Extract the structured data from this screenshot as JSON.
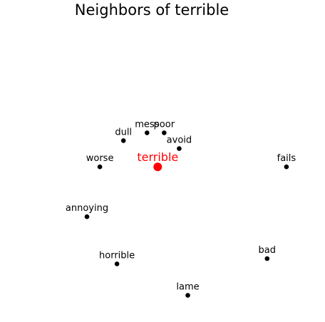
{
  "chart_data": {
    "type": "scatter",
    "title": "Neighbors of terrible",
    "grid": false,
    "axes_visible": false,
    "xlim": [
      0,
      1
    ],
    "ylim": [
      0,
      1
    ],
    "target": {
      "label": "terrible",
      "x": 0.32,
      "y": 0.57,
      "color": "#ff0000"
    },
    "neighbors": [
      {
        "label": "mess",
        "x": 0.27,
        "y": 0.7
      },
      {
        "label": "poor",
        "x": 0.35,
        "y": 0.7
      },
      {
        "label": "dull",
        "x": 0.16,
        "y": 0.67
      },
      {
        "label": "avoid",
        "x": 0.42,
        "y": 0.64
      },
      {
        "label": "worse",
        "x": 0.05,
        "y": 0.57
      },
      {
        "label": "fails",
        "x": 0.92,
        "y": 0.57
      },
      {
        "label": "annoying",
        "x": -0.01,
        "y": 0.38
      },
      {
        "label": "horrible",
        "x": 0.13,
        "y": 0.2
      },
      {
        "label": "bad",
        "x": 0.83,
        "y": 0.22
      },
      {
        "label": "lame",
        "x": 0.46,
        "y": 0.08
      }
    ],
    "point_color": "#000000"
  }
}
